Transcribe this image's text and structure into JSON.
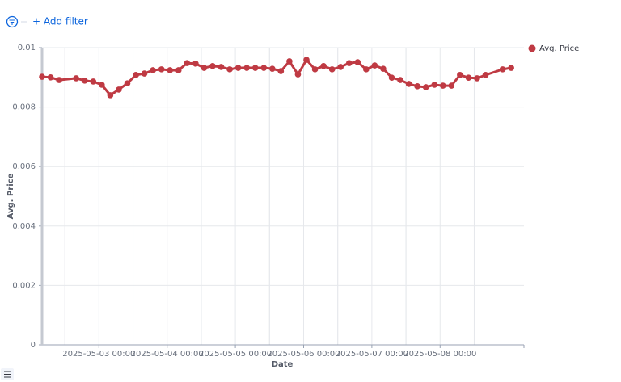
{
  "toolbar": {
    "add_filter": "+ Add filter"
  },
  "chart_data": {
    "type": "line",
    "x_label": "Date",
    "y_label": "Avg. Price",
    "x": [
      "2025-05-02 04:00",
      "2025-05-02 07:00",
      "2025-05-02 10:00",
      "2025-05-02 16:00",
      "2025-05-02 19:00",
      "2025-05-02 22:00",
      "2025-05-03 01:00",
      "2025-05-03 04:00",
      "2025-05-03 07:00",
      "2025-05-03 10:00",
      "2025-05-03 13:00",
      "2025-05-03 16:00",
      "2025-05-03 19:00",
      "2025-05-03 22:00",
      "2025-05-04 01:00",
      "2025-05-04 04:00",
      "2025-05-04 07:00",
      "2025-05-04 10:00",
      "2025-05-04 13:00",
      "2025-05-04 16:00",
      "2025-05-04 19:00",
      "2025-05-04 22:00",
      "2025-05-05 01:00",
      "2025-05-05 04:00",
      "2025-05-05 07:00",
      "2025-05-05 10:00",
      "2025-05-05 13:00",
      "2025-05-05 16:00",
      "2025-05-05 19:00",
      "2025-05-05 22:00",
      "2025-05-06 01:00",
      "2025-05-06 04:00",
      "2025-05-06 07:00",
      "2025-05-06 10:00",
      "2025-05-06 13:00",
      "2025-05-06 16:00",
      "2025-05-06 19:00",
      "2025-05-06 22:00",
      "2025-05-07 01:00",
      "2025-05-07 04:00",
      "2025-05-07 07:00",
      "2025-05-07 10:00",
      "2025-05-07 13:00",
      "2025-05-07 16:00",
      "2025-05-07 19:00",
      "2025-05-07 22:00",
      "2025-05-08 01:00",
      "2025-05-08 04:00",
      "2025-05-08 07:00",
      "2025-05-08 10:00",
      "2025-05-08 13:00",
      "2025-05-08 16:00",
      "2025-05-08 22:00",
      "2025-05-09 01:00"
    ],
    "series": [
      {
        "name": "Avg. Price",
        "color": "#bf3a43",
        "values": [
          0.00902,
          0.009,
          0.00891,
          0.00897,
          0.00889,
          0.00886,
          0.00875,
          0.0084,
          0.00859,
          0.0088,
          0.00908,
          0.00913,
          0.00924,
          0.00927,
          0.00924,
          0.00924,
          0.00948,
          0.00946,
          0.00932,
          0.00938,
          0.00935,
          0.00927,
          0.00932,
          0.00932,
          0.00932,
          0.00932,
          0.00929,
          0.00921,
          0.00954,
          0.0091,
          0.00959,
          0.00927,
          0.00938,
          0.00927,
          0.00935,
          0.00948,
          0.00951,
          0.00927,
          0.0094,
          0.00929,
          0.00899,
          0.00891,
          0.00878,
          0.0087,
          0.00867,
          0.00875,
          0.00872,
          0.00872,
          0.00908,
          0.00899,
          0.00897,
          0.00908,
          0.00927,
          0.00932
        ]
      }
    ],
    "xlim": [
      "2025-05-02 04:00",
      "2025-05-09 05:30"
    ],
    "xticks": [
      "2025-05-03 00:00",
      "2025-05-04 00:00",
      "2025-05-05 00:00",
      "2025-05-06 00:00",
      "2025-05-07 00:00",
      "2025-05-08 00:00"
    ],
    "ylim": [
      0,
      0.01
    ],
    "yticks": [
      0,
      0.002,
      0.004,
      0.006,
      0.008,
      0.01
    ],
    "grid": true,
    "legend": "right"
  }
}
